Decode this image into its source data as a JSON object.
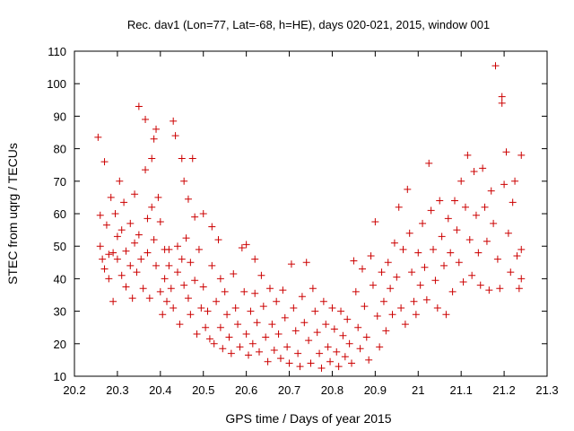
{
  "chart_data": {
    "type": "scatter",
    "title": "Rec. dav1 (Lon=77, Lat=-68, h=HE), days 020-021, 2015, window 001",
    "xlabel": "GPS time / Days of year 2015",
    "ylabel": "STEC from uqrg / TECUs",
    "xlim": [
      20.2,
      21.3
    ],
    "ylim": [
      10,
      110
    ],
    "xticks": [
      20.2,
      20.3,
      20.4,
      20.5,
      20.6,
      20.7,
      20.8,
      20.9,
      21.0,
      21.1,
      21.2,
      21.3
    ],
    "xtick_labels": [
      "20.2",
      "20.3",
      "20.4",
      "20.5",
      "20.6",
      "20.7",
      "20.8",
      "20.9",
      "21",
      "21.1",
      "21.2",
      "21.3"
    ],
    "yticks": [
      10,
      20,
      30,
      40,
      50,
      60,
      70,
      80,
      90,
      100,
      110
    ],
    "ytick_labels": [
      "10",
      "20",
      "30",
      "40",
      "50",
      "60",
      "70",
      "80",
      "90",
      "100",
      "110"
    ],
    "grid": false,
    "marker": "plus",
    "color": "#cc0000",
    "series": [
      {
        "name": "STEC",
        "points": [
          [
            20.255,
            83.5
          ],
          [
            20.26,
            50
          ],
          [
            20.26,
            59.5
          ],
          [
            20.265,
            46
          ],
          [
            20.27,
            76
          ],
          [
            20.27,
            43
          ],
          [
            20.275,
            56.5
          ],
          [
            20.28,
            47.5
          ],
          [
            20.28,
            40
          ],
          [
            20.285,
            65
          ],
          [
            20.29,
            48
          ],
          [
            20.29,
            33
          ],
          [
            20.295,
            60
          ],
          [
            20.3,
            53
          ],
          [
            20.3,
            46
          ],
          [
            20.305,
            70
          ],
          [
            20.31,
            55
          ],
          [
            20.31,
            41
          ],
          [
            20.315,
            63.5
          ],
          [
            20.32,
            48.5
          ],
          [
            20.32,
            37.5
          ],
          [
            20.33,
            57
          ],
          [
            20.33,
            44
          ],
          [
            20.335,
            34
          ],
          [
            20.34,
            66
          ],
          [
            20.34,
            51
          ],
          [
            20.345,
            42
          ],
          [
            20.35,
            93
          ],
          [
            20.35,
            53.5
          ],
          [
            20.355,
            46
          ],
          [
            20.36,
            37
          ],
          [
            20.365,
            73.5
          ],
          [
            20.365,
            89
          ],
          [
            20.37,
            58.5
          ],
          [
            20.37,
            48
          ],
          [
            20.375,
            34
          ],
          [
            20.38,
            77
          ],
          [
            20.38,
            62
          ],
          [
            20.385,
            83
          ],
          [
            20.385,
            52
          ],
          [
            20.39,
            86
          ],
          [
            20.39,
            44
          ],
          [
            20.395,
            65
          ],
          [
            20.4,
            57.5
          ],
          [
            20.4,
            36
          ],
          [
            20.405,
            29
          ],
          [
            20.41,
            49
          ],
          [
            20.41,
            40
          ],
          [
            20.415,
            33
          ],
          [
            20.42,
            49
          ],
          [
            20.42,
            44
          ],
          [
            20.425,
            37
          ],
          [
            20.43,
            88.5
          ],
          [
            20.43,
            31
          ],
          [
            20.435,
            84
          ],
          [
            20.44,
            50
          ],
          [
            20.44,
            42
          ],
          [
            20.445,
            26
          ],
          [
            20.45,
            77
          ],
          [
            20.45,
            46
          ],
          [
            20.455,
            70
          ],
          [
            20.455,
            38
          ],
          [
            20.46,
            52.5
          ],
          [
            20.465,
            64.5
          ],
          [
            20.465,
            34
          ],
          [
            20.47,
            45
          ],
          [
            20.47,
            29
          ],
          [
            20.475,
            77
          ],
          [
            20.48,
            59
          ],
          [
            20.48,
            39.5
          ],
          [
            20.485,
            23
          ],
          [
            20.49,
            49
          ],
          [
            20.495,
            31
          ],
          [
            20.5,
            60
          ],
          [
            20.5,
            37.5
          ],
          [
            20.505,
            25
          ],
          [
            20.51,
            30
          ],
          [
            20.515,
            21.5
          ],
          [
            20.52,
            56
          ],
          [
            20.52,
            44
          ],
          [
            20.525,
            20
          ],
          [
            20.53,
            33
          ],
          [
            20.535,
            52
          ],
          [
            20.54,
            40
          ],
          [
            20.54,
            25
          ],
          [
            20.545,
            18.5
          ],
          [
            20.55,
            36
          ],
          [
            20.555,
            29
          ],
          [
            20.56,
            22
          ],
          [
            20.565,
            17
          ],
          [
            20.57,
            41.5
          ],
          [
            20.575,
            31
          ],
          [
            20.58,
            26
          ],
          [
            20.585,
            19
          ],
          [
            20.59,
            49.5
          ],
          [
            20.595,
            36
          ],
          [
            20.6,
            50.5
          ],
          [
            20.6,
            23
          ],
          [
            20.605,
            16.5
          ],
          [
            20.61,
            30
          ],
          [
            20.615,
            20
          ],
          [
            20.62,
            46
          ],
          [
            20.62,
            35.5
          ],
          [
            20.625,
            26.5
          ],
          [
            20.63,
            17.5
          ],
          [
            20.635,
            41
          ],
          [
            20.64,
            31.5
          ],
          [
            20.645,
            22
          ],
          [
            20.65,
            14.5
          ],
          [
            20.655,
            37
          ],
          [
            20.66,
            26
          ],
          [
            20.665,
            18
          ],
          [
            20.67,
            33
          ],
          [
            20.675,
            23
          ],
          [
            20.68,
            15.5
          ],
          [
            20.685,
            36.5
          ],
          [
            20.69,
            28
          ],
          [
            20.695,
            19
          ],
          [
            20.7,
            14
          ],
          [
            20.705,
            44.5
          ],
          [
            20.71,
            31
          ],
          [
            20.715,
            24
          ],
          [
            20.72,
            17
          ],
          [
            20.725,
            13
          ],
          [
            20.73,
            34.5
          ],
          [
            20.735,
            26.5
          ],
          [
            20.74,
            45
          ],
          [
            20.745,
            21
          ],
          [
            20.75,
            14
          ],
          [
            20.755,
            37
          ],
          [
            20.76,
            30
          ],
          [
            20.765,
            23.5
          ],
          [
            20.77,
            17
          ],
          [
            20.775,
            12.5
          ],
          [
            20.78,
            33
          ],
          [
            20.785,
            26
          ],
          [
            20.79,
            19
          ],
          [
            20.795,
            14.5
          ],
          [
            20.8,
            31
          ],
          [
            20.805,
            24.5
          ],
          [
            20.81,
            17.5
          ],
          [
            20.815,
            13
          ],
          [
            20.82,
            30
          ],
          [
            20.825,
            22.5
          ],
          [
            20.83,
            16
          ],
          [
            20.835,
            27.5
          ],
          [
            20.84,
            20
          ],
          [
            20.845,
            14
          ],
          [
            20.85,
            45.5
          ],
          [
            20.855,
            36
          ],
          [
            20.86,
            25
          ],
          [
            20.865,
            18.5
          ],
          [
            20.87,
            43
          ],
          [
            20.875,
            31.5
          ],
          [
            20.88,
            22
          ],
          [
            20.885,
            15
          ],
          [
            20.89,
            47
          ],
          [
            20.895,
            38
          ],
          [
            20.9,
            57.5
          ],
          [
            20.905,
            28.5
          ],
          [
            20.91,
            19
          ],
          [
            20.915,
            42
          ],
          [
            20.92,
            33
          ],
          [
            20.925,
            24
          ],
          [
            20.93,
            45
          ],
          [
            20.935,
            37
          ],
          [
            20.94,
            29
          ],
          [
            20.945,
            51
          ],
          [
            20.95,
            40.5
          ],
          [
            20.955,
            62
          ],
          [
            20.96,
            31
          ],
          [
            20.965,
            49
          ],
          [
            20.97,
            26
          ],
          [
            20.975,
            67.5
          ],
          [
            20.98,
            54
          ],
          [
            20.985,
            42
          ],
          [
            20.99,
            33
          ],
          [
            20.995,
            29
          ],
          [
            21.0,
            48
          ],
          [
            21.005,
            38
          ],
          [
            21.01,
            57
          ],
          [
            21.015,
            43.5
          ],
          [
            21.02,
            33.5
          ],
          [
            21.025,
            75.5
          ],
          [
            21.03,
            61
          ],
          [
            21.035,
            49
          ],
          [
            21.04,
            39.5
          ],
          [
            21.045,
            31
          ],
          [
            21.05,
            64
          ],
          [
            21.055,
            53
          ],
          [
            21.06,
            44
          ],
          [
            21.065,
            29
          ],
          [
            21.07,
            58.5
          ],
          [
            21.075,
            48
          ],
          [
            21.08,
            36
          ],
          [
            21.085,
            64
          ],
          [
            21.09,
            55
          ],
          [
            21.095,
            45
          ],
          [
            21.1,
            70
          ],
          [
            21.105,
            39
          ],
          [
            21.11,
            62
          ],
          [
            21.115,
            78
          ],
          [
            21.12,
            52
          ],
          [
            21.125,
            41
          ],
          [
            21.13,
            73
          ],
          [
            21.135,
            59.5
          ],
          [
            21.14,
            48
          ],
          [
            21.145,
            38
          ],
          [
            21.15,
            74
          ],
          [
            21.155,
            62
          ],
          [
            21.16,
            51.5
          ],
          [
            21.165,
            36.5
          ],
          [
            21.17,
            67
          ],
          [
            21.175,
            57
          ],
          [
            21.18,
            105.5
          ],
          [
            21.185,
            46
          ],
          [
            21.19,
            37
          ],
          [
            21.195,
            94
          ],
          [
            21.195,
            96
          ],
          [
            21.2,
            69
          ],
          [
            21.205,
            79
          ],
          [
            21.21,
            54
          ],
          [
            21.215,
            42
          ],
          [
            21.22,
            63.5
          ],
          [
            21.225,
            70
          ],
          [
            21.23,
            47
          ],
          [
            21.235,
            37
          ],
          [
            21.24,
            78
          ],
          [
            21.24,
            49
          ],
          [
            21.24,
            40
          ]
        ]
      }
    ]
  }
}
